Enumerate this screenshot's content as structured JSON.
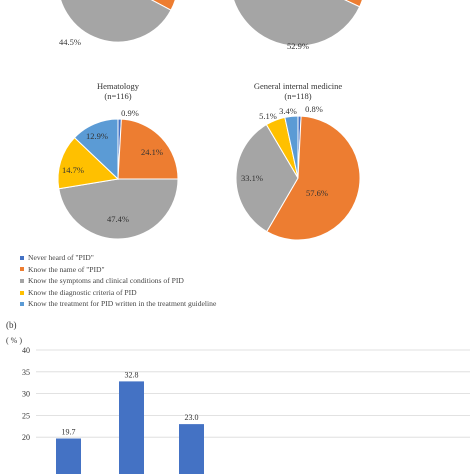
{
  "chart_data": [
    {
      "type": "pie",
      "title": "",
      "labels": [
        "Never heard of \"PID\"",
        "Know the name of \"PID\"",
        "Know the  symptoms and clinical conditions of PID",
        "Know the diagnostic criteria of PID",
        "Know the treatment for PID written in the treatment guideline"
      ],
      "values": [
        null,
        null,
        44.5,
        null,
        null
      ],
      "value_labels": [
        "",
        "",
        "44.5%",
        "",
        ""
      ]
    },
    {
      "type": "pie",
      "title": "",
      "labels": [
        "Never heard of \"PID\"",
        "Know the name of \"PID\"",
        "Know the  symptoms and clinical conditions of PID",
        "Know the diagnostic criteria of PID",
        "Know the treatment for PID written in the treatment guideline"
      ],
      "values": [
        null,
        null,
        52.9,
        null,
        null
      ],
      "value_labels": [
        "",
        "",
        "52.9%",
        "",
        ""
      ]
    },
    {
      "type": "pie",
      "title": "Hematology",
      "subtitle": "(n=116)",
      "labels": [
        "Never heard of \"PID\"",
        "Know the name of \"PID\"",
        "Know the  symptoms and clinical conditions of PID",
        "Know the diagnostic criteria of PID",
        "Know the treatment for PID written in the treatment guideline"
      ],
      "values": [
        0.9,
        24.1,
        47.4,
        14.7,
        12.9
      ],
      "value_labels": [
        "0.9%",
        "24.1%",
        "47.4%",
        "14.7%",
        "12.9%"
      ]
    },
    {
      "type": "pie",
      "title": "General internal medicine",
      "subtitle": "(n=118)",
      "labels": [
        "Never heard of \"PID\"",
        "Know the name of \"PID\"",
        "Know the  symptoms and clinical conditions of PID",
        "Know the diagnostic criteria of PID",
        "Know the treatment for PID written in the treatment guideline"
      ],
      "values": [
        0.8,
        57.6,
        33.1,
        5.1,
        3.4
      ],
      "value_labels": [
        "0.8%",
        "57.6%",
        "33.1%",
        "5.1%",
        "3.4%"
      ]
    },
    {
      "type": "bar",
      "panel_label": "(b)",
      "ylabel": "( % )",
      "ylim": [
        15,
        40
      ],
      "yticks": [
        "40",
        "35",
        "30",
        "25",
        "20"
      ],
      "values": [
        19.7,
        32.8,
        23.0
      ],
      "value_labels": [
        "19.7",
        "32.8",
        "23.0"
      ],
      "bar_color": "#4472c4"
    }
  ],
  "legend": [
    {
      "label": "Never heard of \"PID\"",
      "color": "#4472c4"
    },
    {
      "label": "Know the name of \"PID\"",
      "color": "#ed7d31"
    },
    {
      "label": "Know the  symptoms and clinical conditions of PID",
      "color": "#a5a5a5"
    },
    {
      "label": "Know the diagnostic criteria of PID",
      "color": "#ffc000"
    },
    {
      "label": "Know the treatment for PID written in the treatment guideline",
      "color": "#5b9bd5"
    }
  ],
  "colors": {
    "slices": [
      "#4472c4",
      "#ed7d31",
      "#a5a5a5",
      "#ffc000",
      "#5b9bd5"
    ],
    "grid": "#d9d9d9",
    "text": "#333333"
  }
}
